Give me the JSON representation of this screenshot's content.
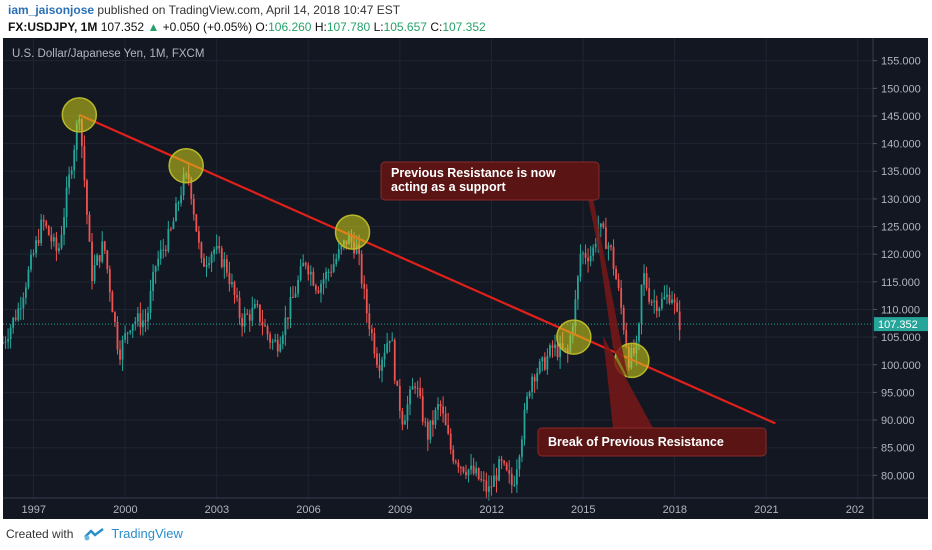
{
  "header": {
    "author": "iam_jaisonjose",
    "published_text": "published on TradingView.com, April 14, 2018 10:47 EST",
    "symbol": "FX:USDJPY, 1M",
    "last": "107.352",
    "change_arrow": "▲",
    "change": "+0.050 (+0.05%)",
    "o_label": "O:",
    "o_value": "106.260",
    "h_label": "H:",
    "h_value": "107.780",
    "l_label": "L:",
    "l_value": "105.657",
    "c_label": "C:",
    "c_value": "107.352"
  },
  "chart_title": "U.S. Dollar/Japanese Yen, 1M, FXCM",
  "price_tag": "107.352",
  "annotations": {
    "callout1": [
      "Previous Resistance is now",
      "acting as a support"
    ],
    "callout2": "Break of Previous Resistance"
  },
  "footer": {
    "created_with": "Created with",
    "brand": "TradingView"
  },
  "colors": {
    "background": "#131722",
    "up_candle": "#26a69a",
    "down_candle": "#ef5350",
    "trendline": "#e0201b",
    "circle_fill": "#d6d61a",
    "callout_bg": "#5a1414",
    "price_tag": "#26a69a"
  },
  "chart_data": {
    "type": "candlestick",
    "title": "U.S. Dollar/Japanese Yen, 1M, FXCM",
    "x_ticks": [
      "1997",
      "2000",
      "2003",
      "2006",
      "2009",
      "2012",
      "2015",
      "2018",
      "2021",
      "202"
    ],
    "y_ticks": [
      "155.000",
      "150.000",
      "145.000",
      "140.000",
      "135.000",
      "130.000",
      "125.000",
      "120.000",
      "115.000",
      "110.000",
      "105.000",
      "100.000",
      "95.000",
      "90.000",
      "85.000",
      "80.000"
    ],
    "ylim": [
      75.9,
      159.1
    ],
    "xlim": [
      1996.0,
      2024.5
    ],
    "last_price": 107.352,
    "price_path": [
      [
        1996.0,
        104
      ],
      [
        1996.5,
        110
      ],
      [
        1997.3,
        126
      ],
      [
        1997.8,
        120
      ],
      [
        1998.5,
        146
      ],
      [
        1998.9,
        116
      ],
      [
        1999.3,
        122
      ],
      [
        1999.8,
        102
      ],
      [
        2000.2,
        108
      ],
      [
        2000.7,
        108
      ],
      [
        2001.0,
        118
      ],
      [
        2001.5,
        124
      ],
      [
        2001.9,
        133
      ],
      [
        2002.1,
        134
      ],
      [
        2002.5,
        118
      ],
      [
        2002.9,
        121
      ],
      [
        2003.3,
        118
      ],
      [
        2003.8,
        108
      ],
      [
        2004.3,
        110
      ],
      [
        2004.8,
        104
      ],
      [
        2005.0,
        104
      ],
      [
        2005.5,
        112
      ],
      [
        2005.9,
        119
      ],
      [
        2006.3,
        114
      ],
      [
        2006.8,
        118
      ],
      [
        2007.3,
        123
      ],
      [
        2007.6,
        121
      ],
      [
        2007.9,
        110
      ],
      [
        2008.3,
        100
      ],
      [
        2008.7,
        106
      ],
      [
        2008.9,
        95
      ],
      [
        2009.1,
        90
      ],
      [
        2009.5,
        97
      ],
      [
        2009.9,
        87
      ],
      [
        2010.3,
        93
      ],
      [
        2010.7,
        84
      ],
      [
        2011.0,
        82
      ],
      [
        2011.5,
        80
      ],
      [
        2011.9,
        77
      ],
      [
        2012.3,
        82
      ],
      [
        2012.7,
        78
      ],
      [
        2012.95,
        86
      ],
      [
        2013.3,
        98
      ],
      [
        2013.7,
        100
      ],
      [
        2014.0,
        103
      ],
      [
        2014.5,
        102
      ],
      [
        2014.8,
        113
      ],
      [
        2014.9,
        120
      ],
      [
        2015.3,
        120
      ],
      [
        2015.5,
        125
      ],
      [
        2015.9,
        121
      ],
      [
        2016.2,
        112
      ],
      [
        2016.5,
        101
      ],
      [
        2016.8,
        103
      ],
      [
        2016.95,
        117
      ],
      [
        2017.2,
        112
      ],
      [
        2017.5,
        111
      ],
      [
        2017.9,
        113
      ],
      [
        2018.1,
        108
      ],
      [
        2018.2,
        107.352
      ]
    ],
    "trendline": {
      "from": [
        1998.5,
        145.2
      ],
      "to": [
        2021.3,
        89.4
      ]
    },
    "circled_points": [
      [
        1998.5,
        145.2
      ],
      [
        2002.0,
        136.0
      ],
      [
        2007.45,
        124.0
      ],
      [
        2014.7,
        105.0
      ],
      [
        2016.6,
        100.8
      ]
    ]
  }
}
